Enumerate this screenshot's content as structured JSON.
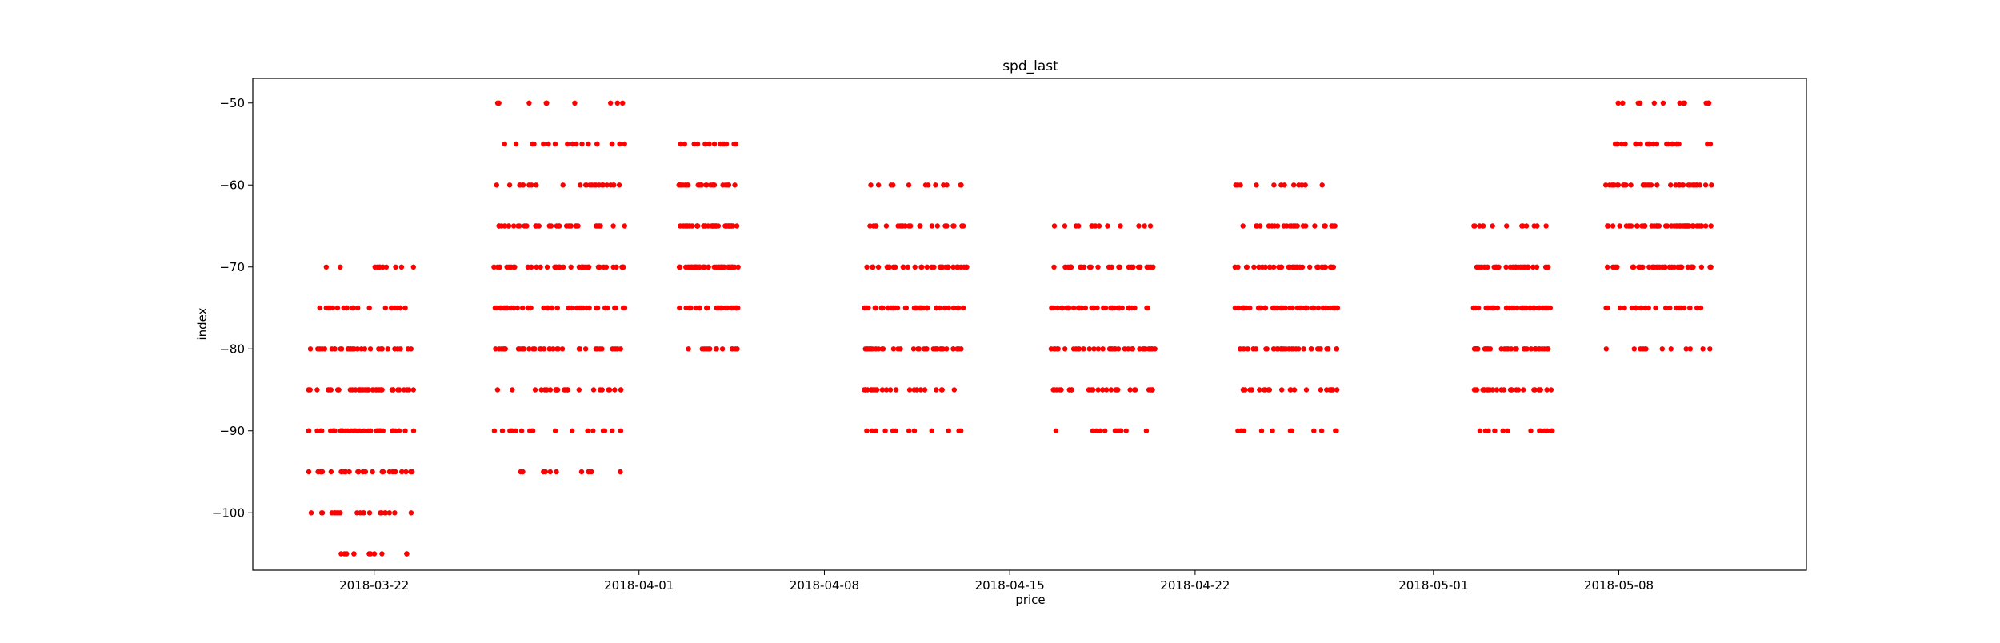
{
  "chart_data": {
    "type": "scatter",
    "title": "spd_last",
    "xlabel": "price",
    "ylabel": "index",
    "x_axis_type": "date",
    "xlim": [
      "2018-03-17T10:00",
      "2018-05-15T02:00"
    ],
    "ylim": [
      -107,
      -47
    ],
    "grid": false,
    "marker_color": "#ff0000",
    "xticks": [
      "2018-03-22",
      "2018-04-01",
      "2018-04-08",
      "2018-04-15",
      "2018-04-22",
      "2018-05-01",
      "2018-05-08"
    ],
    "yticks": [
      -100,
      -90,
      -80,
      -70,
      -60,
      -50
    ],
    "ytick_labels": [
      "−100",
      "−90",
      "−80",
      "−70",
      "−60",
      "−50"
    ],
    "clusters": [
      {
        "start": "2018-03-19T12:00",
        "end": "2018-03-23T12:00",
        "levels": [
          -70,
          -75,
          -80,
          -85,
          -90,
          -95,
          -100,
          -105
        ]
      },
      {
        "start": "2018-03-26T12:00",
        "end": "2018-03-31T12:00",
        "levels": [
          -50,
          -55,
          -60,
          -65,
          -70,
          -75,
          -80,
          -85,
          -90,
          -95
        ]
      },
      {
        "start": "2018-04-02T12:00",
        "end": "2018-04-04T18:00",
        "levels": [
          -55,
          -60,
          -65,
          -70,
          -75,
          -80
        ]
      },
      {
        "start": "2018-04-09T12:00",
        "end": "2018-04-13T12:00",
        "levels": [
          -60,
          -65,
          -70,
          -75,
          -80,
          -85,
          -90
        ]
      },
      {
        "start": "2018-04-16T12:00",
        "end": "2018-04-20T12:00",
        "levels": [
          -65,
          -70,
          -75,
          -80,
          -85,
          -90
        ]
      },
      {
        "start": "2018-04-23T12:00",
        "end": "2018-04-27T12:00",
        "levels": [
          -60,
          -65,
          -70,
          -75,
          -80,
          -85,
          -90
        ]
      },
      {
        "start": "2018-05-02T12:00",
        "end": "2018-05-05T12:00",
        "levels": [
          -65,
          -70,
          -75,
          -80,
          -85,
          -90
        ]
      },
      {
        "start": "2018-05-07T12:00",
        "end": "2018-05-11T12:00",
        "levels": [
          -50,
          -55,
          -60,
          -65,
          -70,
          -75,
          -80
        ]
      }
    ]
  }
}
